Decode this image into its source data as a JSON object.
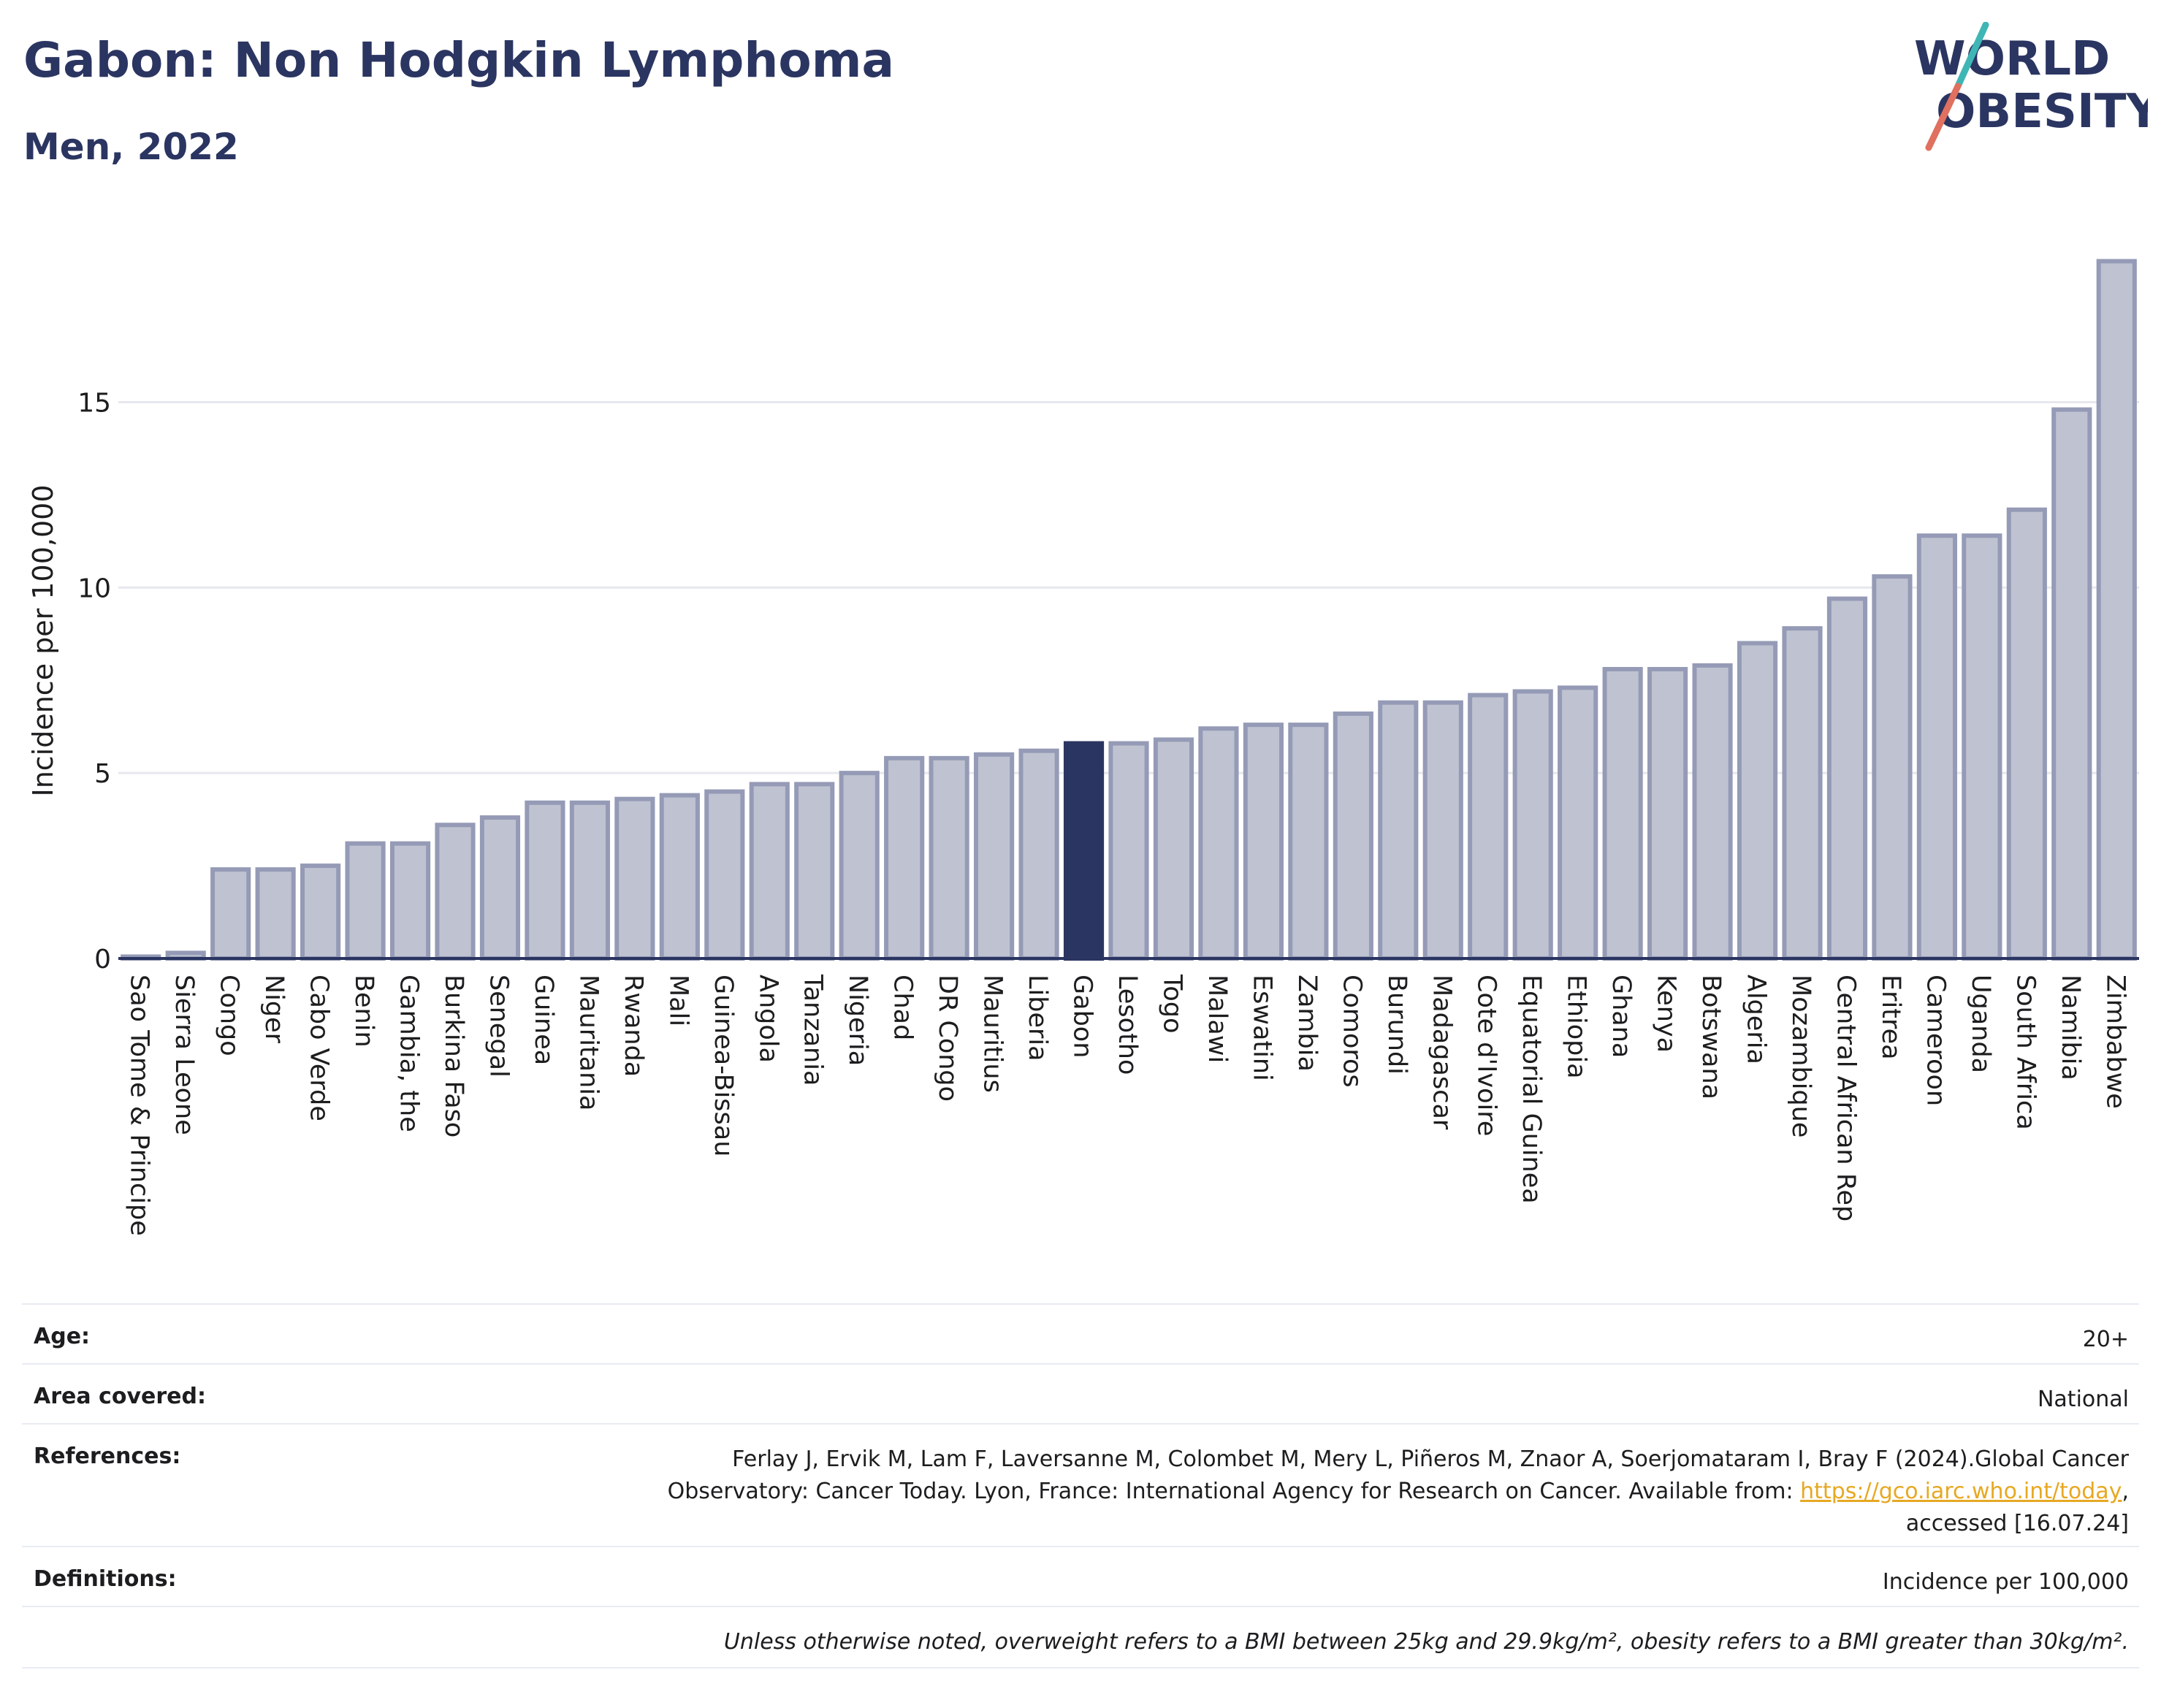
{
  "title": "Gabon: Non Hodgkin Lymphoma",
  "subtitle": "Men, 2022",
  "logo": {
    "line1_a": "W",
    "line1_b": "RLD",
    "line2_b": "BESITY",
    "stroke_colors": [
      "#3fb6b5",
      "#e0705f"
    ]
  },
  "colors": {
    "bar": "#bfc3d1",
    "bar_border": "#959bb6",
    "highlight": "#2b3561",
    "grid": "#e6e8ee",
    "axis": "#2b3561"
  },
  "chart_data": {
    "type": "bar",
    "ylabel": "Incidence per 100,000",
    "ylim": [
      0,
      19.5
    ],
    "yticks": [
      0,
      5,
      10,
      15
    ],
    "highlight": "Gabon",
    "categories": [
      "Sao Tome & Principe",
      "Sierra Leone",
      "Congo",
      "Niger",
      "Cabo Verde",
      "Benin",
      "Gambia, the",
      "Burkina Faso",
      "Senegal",
      "Guinea",
      "Mauritania",
      "Rwanda",
      "Mali",
      "Guinea-Bissau",
      "Angola",
      "Tanzania",
      "Nigeria",
      "Chad",
      "DR Congo",
      "Mauritius",
      "Liberia",
      "Gabon",
      "Lesotho",
      "Togo",
      "Malawi",
      "Eswatini",
      "Zambia",
      "Comoros",
      "Burundi",
      "Madagascar",
      "Cote d'Ivoire",
      "Equatorial Guinea",
      "Ethiopia",
      "Ghana",
      "Kenya",
      "Botswana",
      "Algeria",
      "Mozambique",
      "Central African Rep",
      "Eritrea",
      "Cameroon",
      "Uganda",
      "South Africa",
      "Namibia",
      "Zimbabwe"
    ],
    "values": [
      0.05,
      0.15,
      2.4,
      2.4,
      2.5,
      3.1,
      3.1,
      3.6,
      3.8,
      4.2,
      4.2,
      4.3,
      4.4,
      4.5,
      4.7,
      4.7,
      5.0,
      5.4,
      5.4,
      5.5,
      5.6,
      5.8,
      5.8,
      5.9,
      6.2,
      6.3,
      6.3,
      6.6,
      6.9,
      6.9,
      7.1,
      7.2,
      7.3,
      7.8,
      7.8,
      7.9,
      8.5,
      8.9,
      9.7,
      10.3,
      11.4,
      11.4,
      12.1,
      14.8,
      18.8
    ]
  },
  "meta": {
    "age_label": "Age:",
    "age_value": "20+",
    "area_label": "Area covered:",
    "area_value": "National",
    "ref_label": "References:",
    "ref_line1": "Ferlay J, Ervik M, Lam F, Laversanne M, Colombet M, Mery L, Piñeros M, Znaor A, Soerjomataram I, Bray F (2024).Global Cancer",
    "ref_line2_pre": "Observatory: Cancer Today. Lyon, France: International Agency for Research on Cancer. Available from: ",
    "ref_link": "https://gco.iarc.who.int/today",
    "ref_line2_post": ",",
    "ref_line3": "accessed [16.07.24]",
    "def_label": "Definitions:",
    "def_value": "Incidence per 100,000",
    "note": "Unless otherwise noted, overweight refers to a BMI between 25kg and 29.9kg/m², obesity refers to a BMI greater than 30kg/m²."
  }
}
